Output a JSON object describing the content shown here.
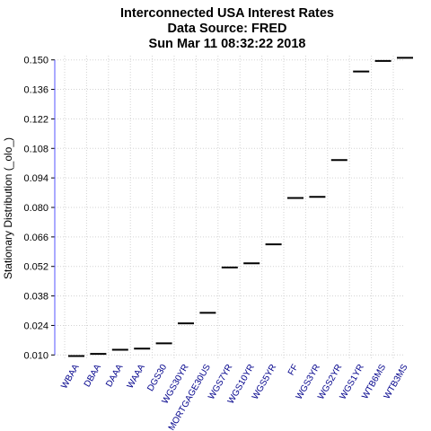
{
  "chart_data": {
    "type": "scatter",
    "title": [
      "Interconnected USA Interest Rates",
      "Data Source: FRED",
      "Sun Mar 11 08:32:22 2018"
    ],
    "ylabel": "Stationary Distribution (_olo_)",
    "xlabel": "",
    "yticks": [
      "0.010",
      "0.024",
      "0.038",
      "0.052",
      "0.066",
      "0.080",
      "0.094",
      "0.108",
      "0.122",
      "0.136",
      "0.150"
    ],
    "ylim": [
      0.008,
      0.152
    ],
    "grid": true,
    "categories": [
      "WBAA",
      "DBAA",
      "DAAA",
      "WAAA",
      "DGS30",
      "WGS30YR",
      "MORTGAGE30US",
      "WGS7YR",
      "WGS10YR",
      "WGS5YR",
      "FF",
      "WGS3YR",
      "WGS2YR",
      "WGS1YR",
      "WTB6MS",
      "WTB3MS"
    ],
    "values": [
      0.0095,
      0.0105,
      0.0125,
      0.013,
      0.0155,
      0.025,
      0.03,
      0.0515,
      0.0535,
      0.0625,
      0.0845,
      0.085,
      0.1025,
      0.1445,
      0.1495,
      0.151
    ],
    "colors": {
      "marker": "#000000",
      "category_labels": "#00008b",
      "axis_line": "#5555ff",
      "grid": "#d3d3d3"
    }
  }
}
